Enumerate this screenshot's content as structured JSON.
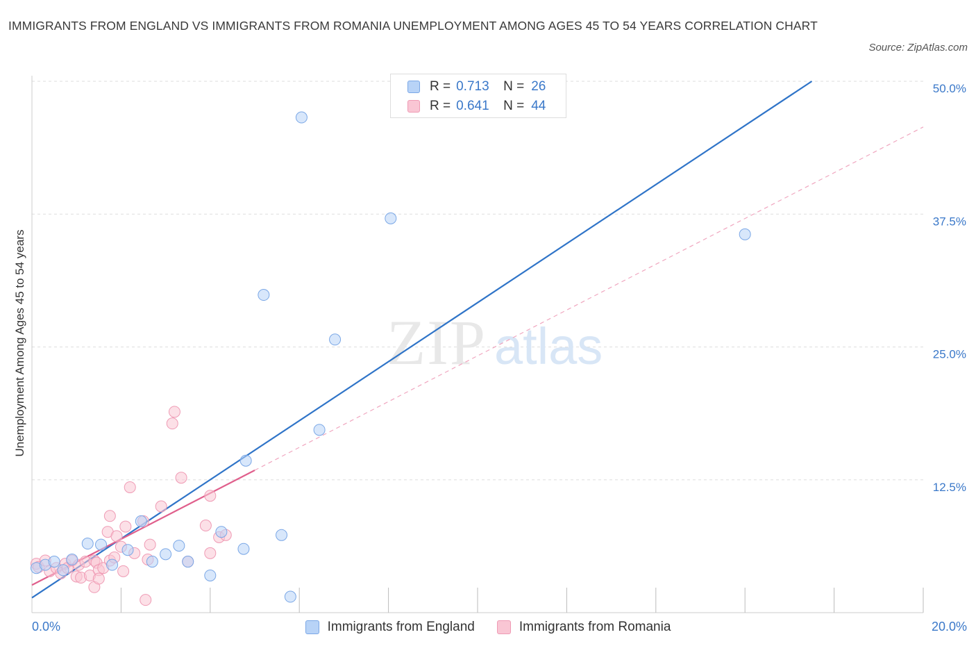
{
  "header": {
    "title": "IMMIGRANTS FROM ENGLAND VS IMMIGRANTS FROM ROMANIA UNEMPLOYMENT AMONG AGES 45 TO 54 YEARS CORRELATION CHART",
    "source": "Source: ZipAtlas.com"
  },
  "watermark": {
    "zip": "ZIP",
    "atlas": "atlas"
  },
  "legend_top": {
    "r_label": "R =",
    "n_label": "N =",
    "england": {
      "r": "0.713",
      "n": "26"
    },
    "romania": {
      "r": "0.641",
      "n": "44"
    }
  },
  "colors": {
    "england_fill": "#b8d3f7",
    "england_stroke": "#7aa7e6",
    "england_line": "#2f74c8",
    "romania_fill": "#f9c6d4",
    "romania_stroke": "#ef9ab4",
    "romania_line": "#e05f8c",
    "grid": "#dddddd",
    "tick_label": "#3a78c9"
  },
  "chart_data": {
    "type": "scatter",
    "title": "IMMIGRANTS FROM ENGLAND VS IMMIGRANTS FROM ROMANIA UNEMPLOYMENT AMONG AGES 45 TO 54 YEARS CORRELATION CHART",
    "xlabel": "",
    "ylabel": "Unemployment Among Ages 45 to 54 years",
    "xlim": [
      0,
      20
    ],
    "ylim": [
      0,
      50
    ],
    "x_tick_labels": [
      "0.0%",
      "20.0%"
    ],
    "y_ticks": [
      12.5,
      25,
      37.5,
      50
    ],
    "y_tick_labels": [
      "12.5%",
      "25.0%",
      "37.5%",
      "50.0%"
    ],
    "grid": true,
    "series": [
      {
        "name": "Immigrants from England",
        "points": [
          [
            0.1,
            4.2
          ],
          [
            0.3,
            4.5
          ],
          [
            0.5,
            4.8
          ],
          [
            0.7,
            4.0
          ],
          [
            0.9,
            5.0
          ],
          [
            1.25,
            6.5
          ],
          [
            1.55,
            6.4
          ],
          [
            1.8,
            4.5
          ],
          [
            2.15,
            5.9
          ],
          [
            2.45,
            8.6
          ],
          [
            2.7,
            4.8
          ],
          [
            3.0,
            5.5
          ],
          [
            3.3,
            6.3
          ],
          [
            3.5,
            4.8
          ],
          [
            4.0,
            3.5
          ],
          [
            4.25,
            7.6
          ],
          [
            4.75,
            6.0
          ],
          [
            4.8,
            14.3
          ],
          [
            5.2,
            29.9
          ],
          [
            5.6,
            7.3
          ],
          [
            5.8,
            1.5
          ],
          [
            6.05,
            46.6
          ],
          [
            6.45,
            17.2
          ],
          [
            6.8,
            25.7
          ],
          [
            8.05,
            37.1
          ],
          [
            16.0,
            35.6
          ]
        ],
        "trend": {
          "x": [
            0,
            17.5
          ],
          "y": [
            1.4,
            50.0
          ]
        }
      },
      {
        "name": "Immigrants from Romania",
        "points": [
          [
            0.1,
            4.6
          ],
          [
            0.15,
            4.3
          ],
          [
            0.3,
            4.9
          ],
          [
            0.4,
            3.9
          ],
          [
            0.55,
            4.2
          ],
          [
            0.65,
            3.7
          ],
          [
            0.75,
            4.6
          ],
          [
            0.8,
            4.2
          ],
          [
            0.9,
            4.9
          ],
          [
            1.0,
            3.4
          ],
          [
            1.05,
            4.5
          ],
          [
            1.1,
            3.3
          ],
          [
            1.2,
            4.8
          ],
          [
            1.3,
            3.5
          ],
          [
            1.4,
            4.9
          ],
          [
            1.45,
            4.7
          ],
          [
            1.5,
            4.0
          ],
          [
            1.4,
            2.4
          ],
          [
            1.5,
            3.2
          ],
          [
            1.6,
            4.2
          ],
          [
            1.7,
            7.6
          ],
          [
            1.75,
            9.1
          ],
          [
            1.75,
            4.9
          ],
          [
            1.85,
            5.2
          ],
          [
            1.9,
            7.2
          ],
          [
            2.0,
            6.2
          ],
          [
            2.05,
            3.9
          ],
          [
            2.1,
            8.1
          ],
          [
            2.2,
            11.8
          ],
          [
            2.3,
            5.6
          ],
          [
            2.5,
            8.6
          ],
          [
            2.55,
            1.2
          ],
          [
            2.6,
            5.0
          ],
          [
            2.65,
            6.4
          ],
          [
            2.9,
            10.0
          ],
          [
            3.15,
            17.8
          ],
          [
            3.2,
            18.9
          ],
          [
            3.35,
            12.7
          ],
          [
            3.5,
            4.8
          ],
          [
            3.9,
            8.2
          ],
          [
            4.0,
            5.6
          ],
          [
            4.2,
            7.1
          ],
          [
            4.0,
            11.0
          ],
          [
            4.35,
            7.3
          ]
        ],
        "trend": {
          "x": [
            0,
            5.0
          ],
          "y": [
            2.6,
            13.4
          ]
        },
        "trend_extension": {
          "x": [
            5.0,
            20.0
          ],
          "y": [
            13.4,
            45.7
          ]
        }
      }
    ]
  }
}
